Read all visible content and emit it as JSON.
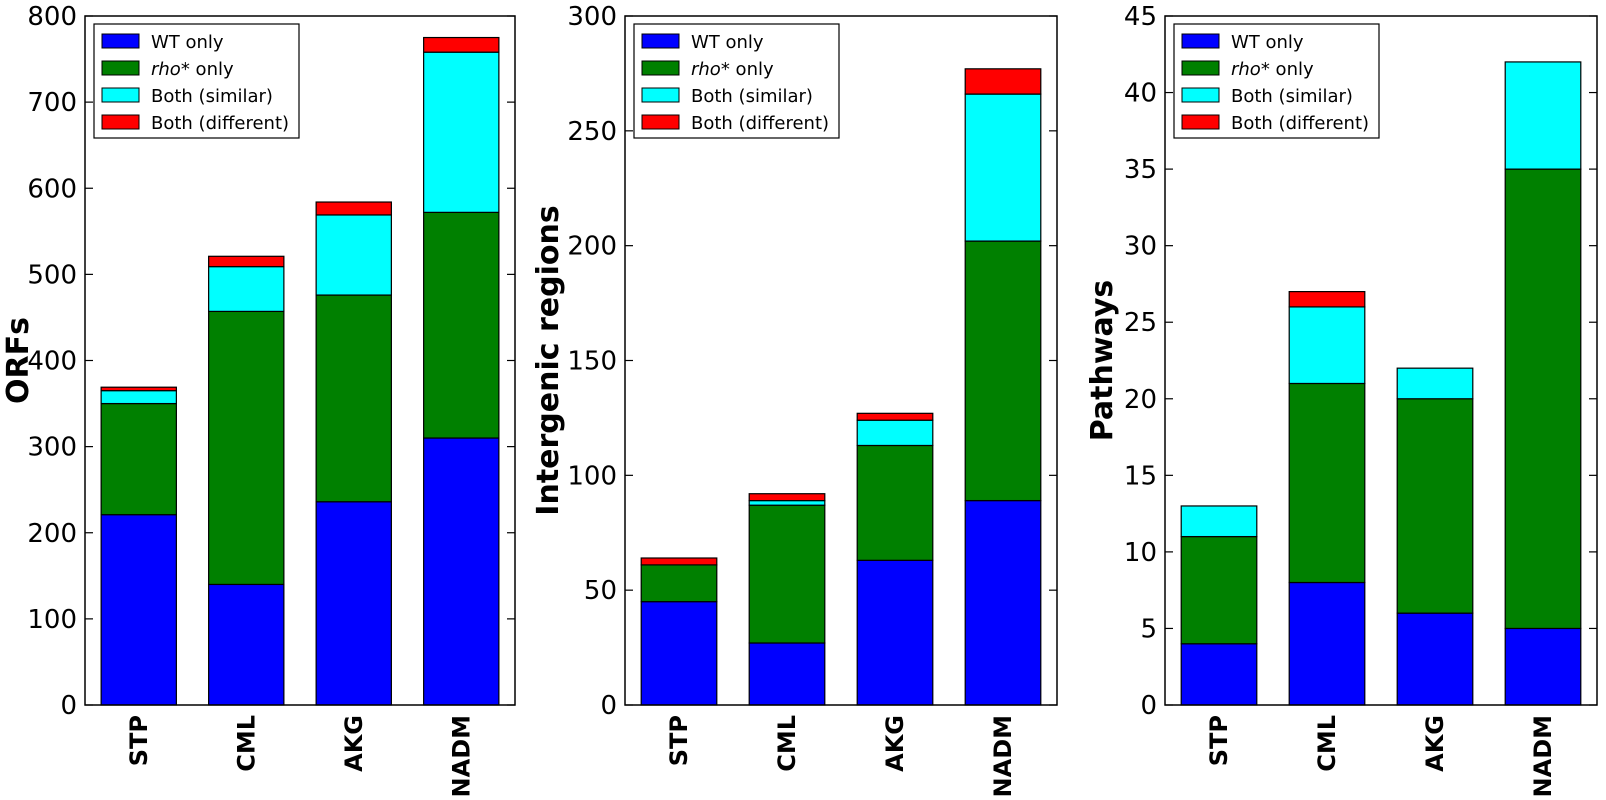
{
  "chart_data": [
    {
      "type": "bar",
      "stacked": true,
      "ylabel": "ORFs",
      "ylim": [
        0,
        800
      ],
      "yticks": [
        0,
        100,
        200,
        300,
        400,
        500,
        600,
        700,
        800
      ],
      "categories": [
        "STP",
        "CML",
        "AKG",
        "NADM"
      ],
      "legend_position": "top-left",
      "series": [
        {
          "name": "WT only",
          "color": "#0000ff",
          "values": [
            221,
            140,
            236,
            310
          ]
        },
        {
          "name": "rho* only",
          "color": "#008000",
          "values": [
            129,
            317,
            240,
            262
          ]
        },
        {
          "name": "Both (similar)",
          "color": "#00ffff",
          "values": [
            15,
            52,
            93,
            186
          ]
        },
        {
          "name": "Both (different)",
          "color": "#ff0000",
          "values": [
            4,
            12,
            15,
            17
          ]
        }
      ]
    },
    {
      "type": "bar",
      "stacked": true,
      "ylabel": "Intergenic regions",
      "ylim": [
        0,
        300
      ],
      "yticks": [
        0,
        50,
        100,
        150,
        200,
        250,
        300
      ],
      "categories": [
        "STP",
        "CML",
        "AKG",
        "NADM"
      ],
      "legend_position": "top-left",
      "series": [
        {
          "name": "WT only",
          "color": "#0000ff",
          "values": [
            45,
            27,
            63,
            89
          ]
        },
        {
          "name": "rho* only",
          "color": "#008000",
          "values": [
            16,
            60,
            50,
            113
          ]
        },
        {
          "name": "Both (similar)",
          "color": "#00ffff",
          "values": [
            0,
            2,
            11,
            64
          ]
        },
        {
          "name": "Both (different)",
          "color": "#ff0000",
          "values": [
            3,
            3,
            3,
            11
          ]
        }
      ]
    },
    {
      "type": "bar",
      "stacked": true,
      "ylabel": "Pathways",
      "ylim": [
        0,
        45
      ],
      "yticks": [
        0,
        5,
        10,
        15,
        20,
        25,
        30,
        35,
        40,
        45
      ],
      "categories": [
        "STP",
        "CML",
        "AKG",
        "NADM"
      ],
      "legend_position": "top-left",
      "series": [
        {
          "name": "WT only",
          "color": "#0000ff",
          "values": [
            4,
            8,
            6,
            5
          ]
        },
        {
          "name": "rho* only",
          "color": "#008000",
          "values": [
            7,
            13,
            14,
            30
          ]
        },
        {
          "name": "Both (similar)",
          "color": "#00ffff",
          "values": [
            2,
            5,
            2,
            7
          ]
        },
        {
          "name": "Both (different)",
          "color": "#ff0000",
          "values": [
            0,
            1,
            0,
            0
          ]
        }
      ]
    }
  ]
}
